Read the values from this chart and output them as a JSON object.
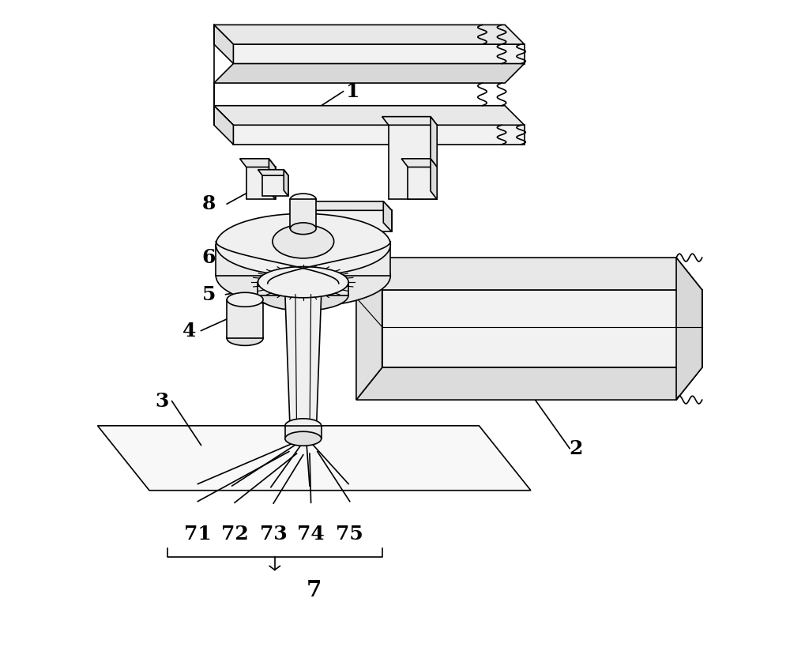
{
  "bg_color": "#ffffff",
  "line_color": "#000000",
  "line_width": 1.2,
  "fig_width": 10.0,
  "fig_height": 8.24,
  "label_fontsize": 18,
  "label_7_fontsize": 20
}
